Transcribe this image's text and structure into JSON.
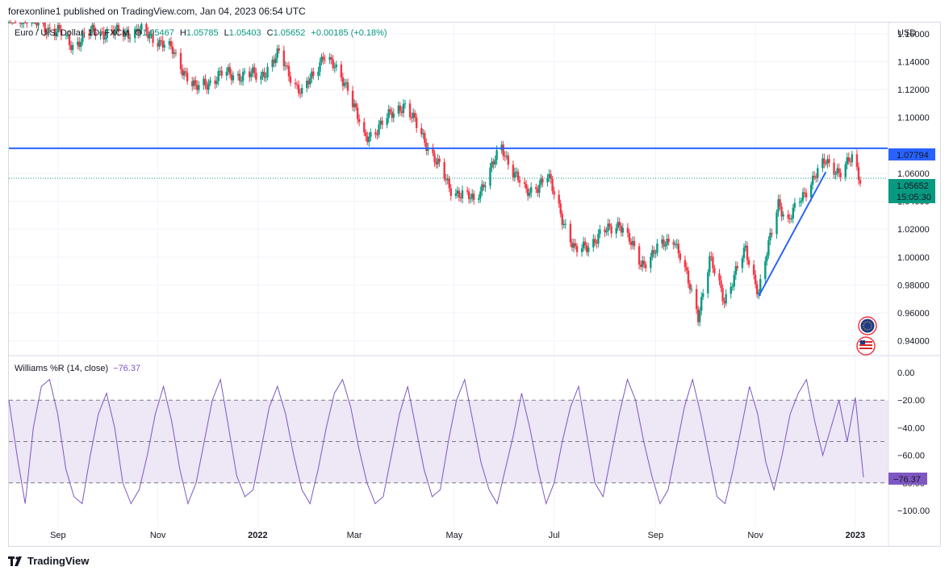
{
  "header": {
    "publisher": "forexonline1 published on TradingView.com, Jan 04, 2023 06:54 UTC"
  },
  "legend": {
    "symbol": "Euro / U.S. Dollar, 1D, FXCM",
    "open_label": "O",
    "open": "1.05467",
    "high_label": "H",
    "high": "1.05785",
    "low_label": "L",
    "low": "1.05403",
    "close_label": "C",
    "close": "1.05652",
    "change": "+0.00185 (+0.18%)"
  },
  "currency": "USD",
  "price_axis": {
    "ticks": [
      "1.16000",
      "1.14000",
      "1.12000",
      "1.10000",
      "1.06000",
      "1.04000",
      "1.02000",
      "1.00000",
      "0.98000",
      "0.96000",
      "0.94000"
    ]
  },
  "badges": {
    "level": "1.07794",
    "last_price": "1.05652",
    "countdown": "15:05:30"
  },
  "time_axis": {
    "labels": [
      "Sep",
      "Nov",
      "2022",
      "Mar",
      "May",
      "Jul",
      "Sep",
      "Nov",
      "2023"
    ]
  },
  "oscillator": {
    "title": "Williams %R (14, close)",
    "value": "−76.37",
    "ticks": [
      "0.00",
      "−20.00",
      "−40.00",
      "−60.00",
      "−80.00",
      "−100.00"
    ],
    "badge": "−76.37"
  },
  "footer": {
    "brand": "TradingView"
  },
  "colors": {
    "up": "#089981",
    "down": "#f23645",
    "level_line": "#2962ff",
    "trend_line": "#2962ff",
    "wr_line": "#7e57c2",
    "wr_band": "#ede7f6"
  },
  "chart_data": {
    "type": "candlestick",
    "symbol": "EURUSD",
    "interval": "1D",
    "x_range": [
      "2021-08-02",
      "2023-01-04"
    ],
    "ylim": [
      0.93,
      1.168
    ],
    "horizontal_level": 1.07794,
    "last_close": 1.05652,
    "trend_line": {
      "from": [
        "2022-11-03",
        0.972
      ],
      "to": [
        "2022-12-14",
        1.061
      ]
    },
    "close_path": [
      {
        "date": "2021-08-10",
        "close": 1.172
      },
      {
        "date": "2021-09-03",
        "close": 1.16
      },
      {
        "date": "2021-09-10",
        "close": 1.152
      },
      {
        "date": "2021-09-24",
        "close": 1.163
      },
      {
        "date": "2021-10-01",
        "close": 1.16
      },
      {
        "date": "2021-10-20",
        "close": 1.162
      },
      {
        "date": "2021-11-01",
        "close": 1.156
      },
      {
        "date": "2021-11-10",
        "close": 1.147
      },
      {
        "date": "2021-11-24",
        "close": 1.12
      },
      {
        "date": "2021-12-10",
        "close": 1.131
      },
      {
        "date": "2022-01-03",
        "close": 1.13
      },
      {
        "date": "2022-01-14",
        "close": 1.145
      },
      {
        "date": "2022-01-28",
        "close": 1.116
      },
      {
        "date": "2022-02-10",
        "close": 1.145
      },
      {
        "date": "2022-02-25",
        "close": 1.123
      },
      {
        "date": "2022-03-07",
        "close": 1.084
      },
      {
        "date": "2022-03-31",
        "close": 1.11
      },
      {
        "date": "2022-04-14",
        "close": 1.082
      },
      {
        "date": "2022-04-28",
        "close": 1.05
      },
      {
        "date": "2022-05-13",
        "close": 1.04
      },
      {
        "date": "2022-05-30",
        "close": 1.078
      },
      {
        "date": "2022-06-14",
        "close": 1.045
      },
      {
        "date": "2022-06-27",
        "close": 1.058
      },
      {
        "date": "2022-07-14",
        "close": 1.003
      },
      {
        "date": "2022-08-10",
        "close": 1.025
      },
      {
        "date": "2022-08-23",
        "close": 0.995
      },
      {
        "date": "2022-09-12",
        "close": 1.015
      },
      {
        "date": "2022-09-27",
        "close": 0.959
      },
      {
        "date": "2022-10-04",
        "close": 0.998
      },
      {
        "date": "2022-10-13",
        "close": 0.97
      },
      {
        "date": "2022-10-26",
        "close": 1.005
      },
      {
        "date": "2022-11-03",
        "close": 0.975
      },
      {
        "date": "2022-11-15",
        "close": 1.04
      },
      {
        "date": "2022-11-21",
        "close": 1.025
      },
      {
        "date": "2022-12-05",
        "close": 1.055
      },
      {
        "date": "2022-12-14",
        "close": 1.068
      },
      {
        "date": "2022-12-23",
        "close": 1.061
      },
      {
        "date": "2022-12-30",
        "close": 1.07
      },
      {
        "date": "2023-01-04",
        "close": 1.0565
      }
    ],
    "williams_r": {
      "period": 14,
      "last": -76.37,
      "ylim": [
        -100,
        0
      ],
      "levels": [
        -20,
        -50,
        -80
      ],
      "values": [
        -20,
        -60,
        -95,
        -40,
        -10,
        -5,
        -30,
        -70,
        -90,
        -95,
        -60,
        -30,
        -15,
        -40,
        -80,
        -95,
        -85,
        -60,
        -30,
        -10,
        -35,
        -70,
        -95,
        -80,
        -50,
        -20,
        -5,
        -40,
        -75,
        -90,
        -85,
        -55,
        -25,
        -10,
        -30,
        -60,
        -85,
        -95,
        -70,
        -40,
        -15,
        -5,
        -25,
        -55,
        -80,
        -95,
        -90,
        -60,
        -30,
        -10,
        -40,
        -70,
        -90,
        -85,
        -50,
        -20,
        -5,
        -35,
        -65,
        -85,
        -95,
        -70,
        -45,
        -15,
        -40,
        -70,
        -95,
        -80,
        -50,
        -25,
        -10,
        -45,
        -80,
        -90,
        -60,
        -30,
        -5,
        -20,
        -50,
        -75,
        -95,
        -85,
        -55,
        -25,
        -5,
        -30,
        -60,
        -90,
        -95,
        -70,
        -40,
        -10,
        -30,
        -65,
        -85,
        -60,
        -30,
        -15,
        -5,
        -35,
        -60,
        -40,
        -20,
        -50,
        -18,
        -76
      ]
    }
  }
}
